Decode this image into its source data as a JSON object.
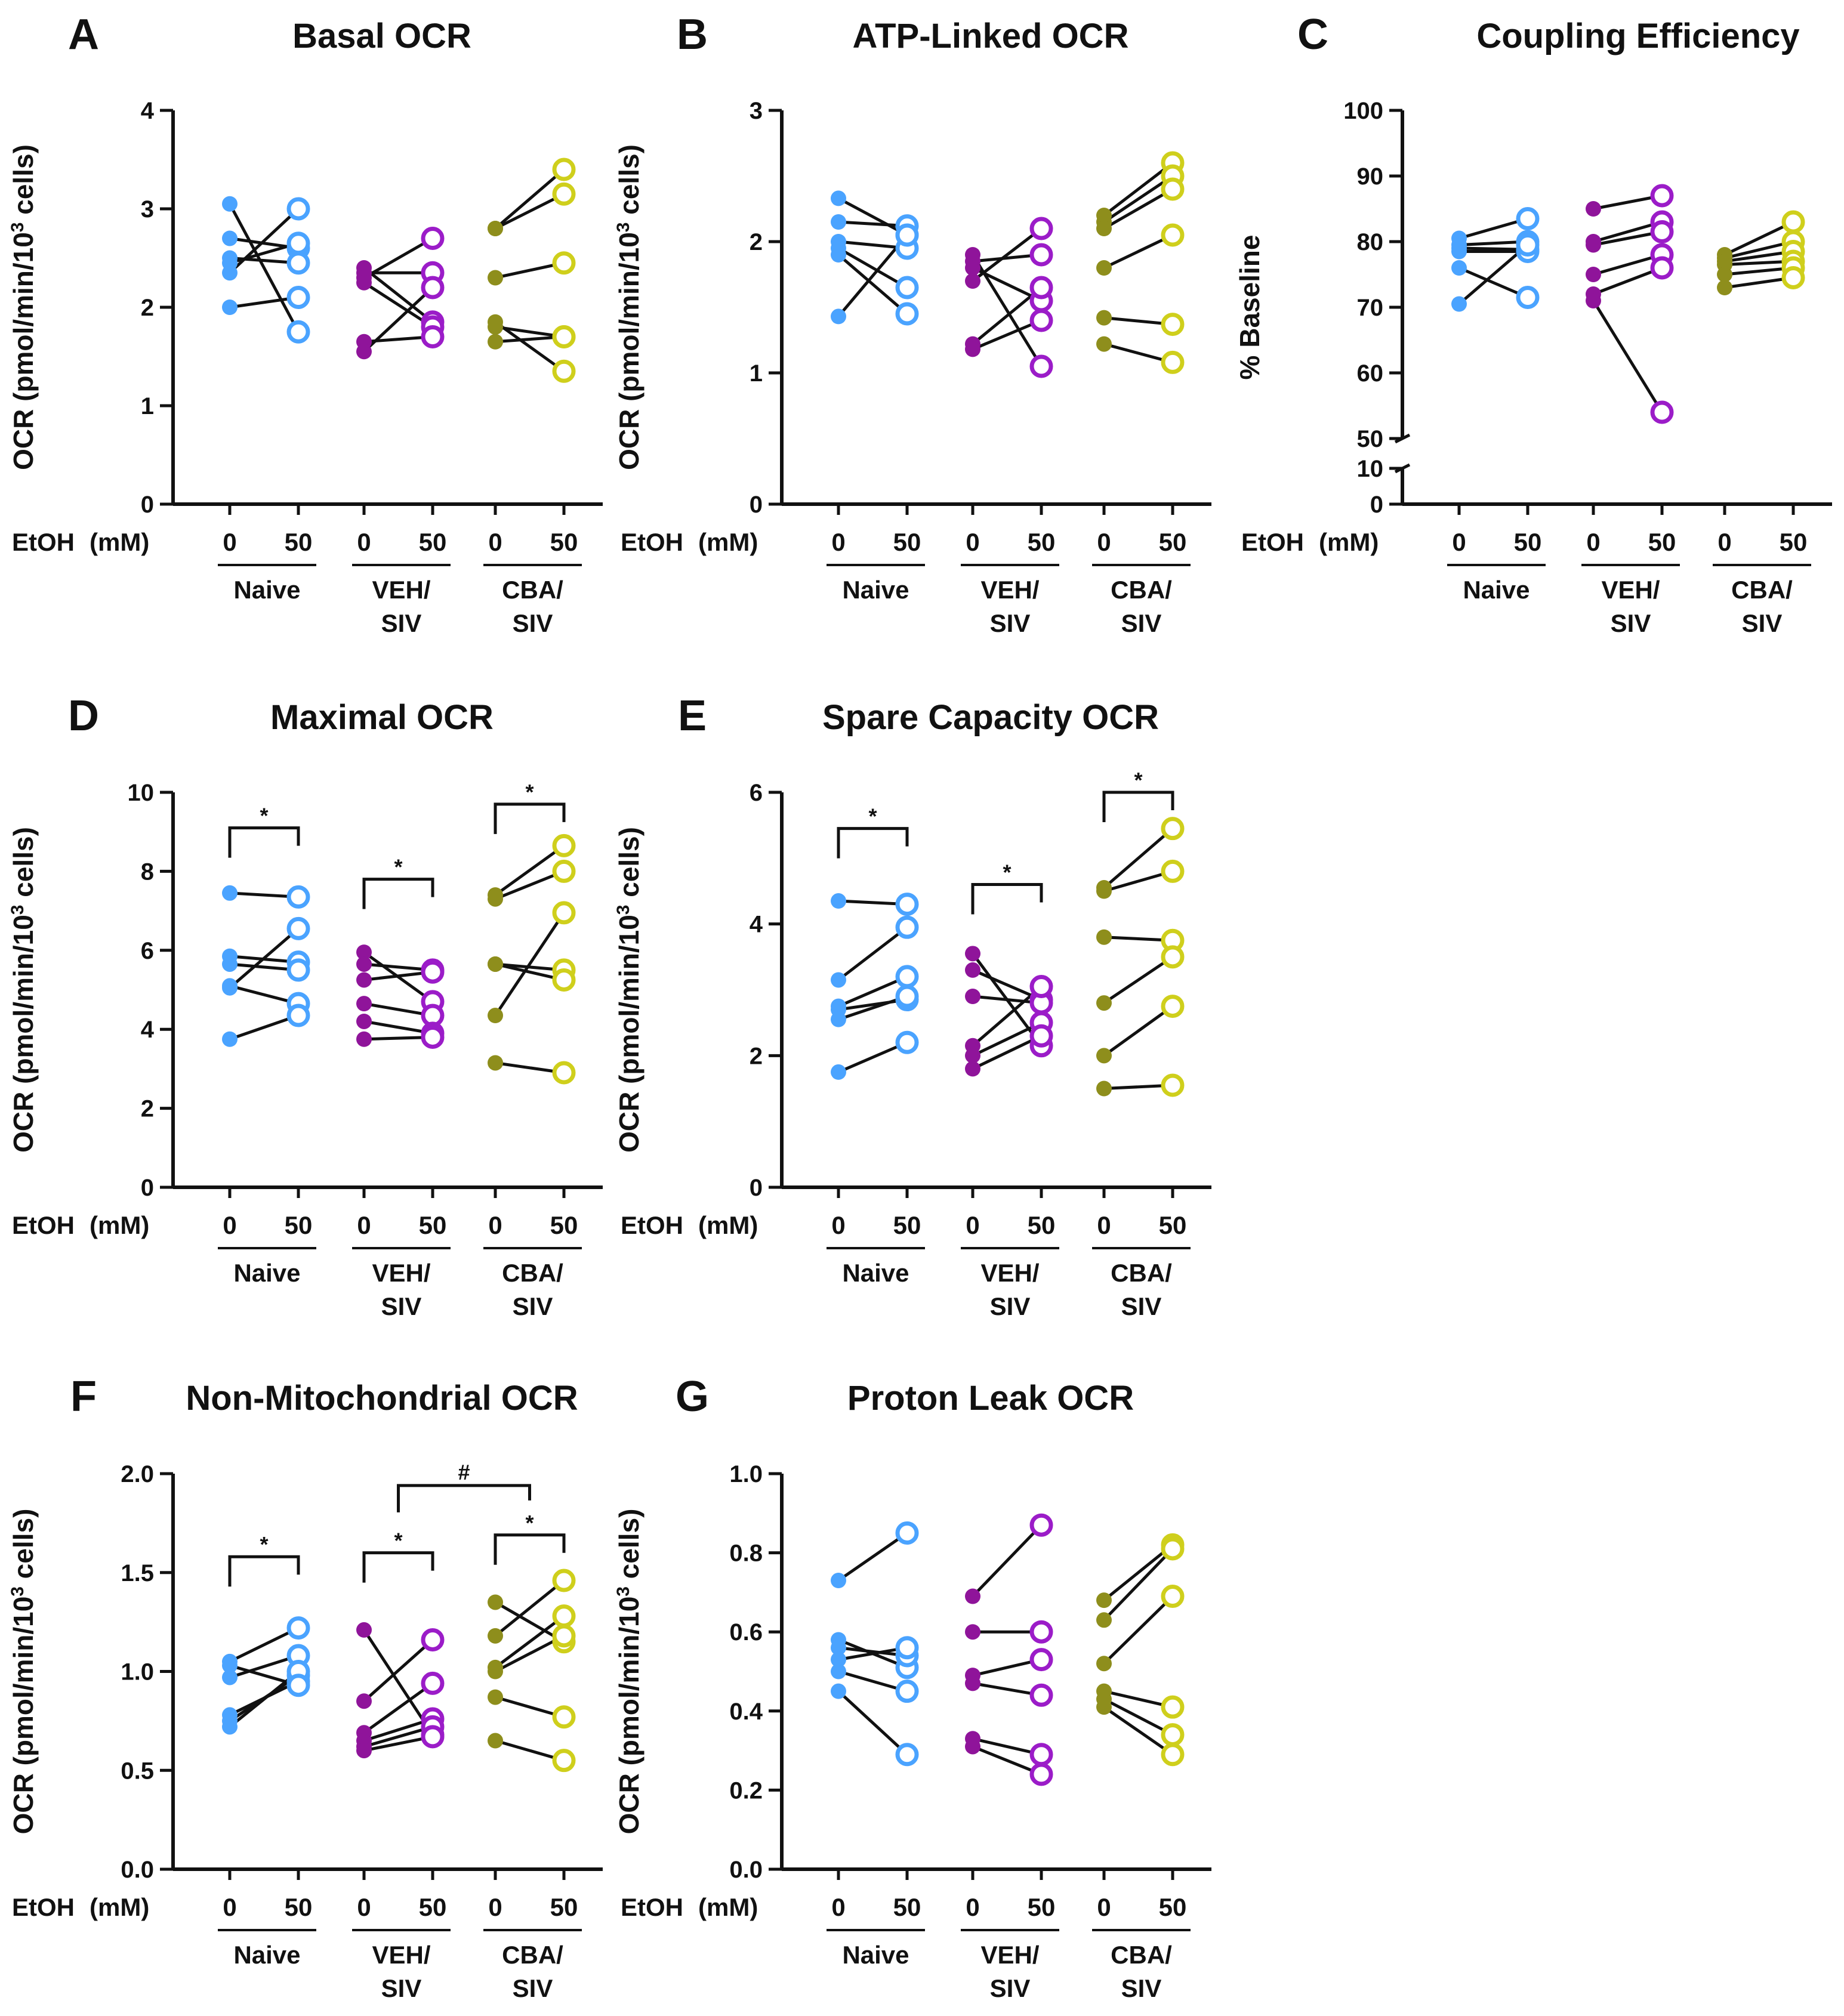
{
  "figure": {
    "etoh_label": "EtOH",
    "mm_label": "(mM)",
    "dose_labels": [
      "0",
      "50"
    ],
    "groups": [
      {
        "line1": "Naive",
        "line2": ""
      },
      {
        "line1": "VEH/",
        "line2": "SIV"
      },
      {
        "line1": "CBA/",
        "line2": "SIV"
      }
    ],
    "colors": {
      "naive": "#4aa3ff",
      "veh": "#8f149a",
      "cba": "#8e8e1c",
      "cba_open": "#cfcf1c",
      "veh_open": "#9b1cc8",
      "naive_open": "#4aa3ff"
    }
  },
  "chart_data": [
    {
      "type": "scatter",
      "panel": "A",
      "title": "Basal OCR",
      "ylabel": "OCR (pmol/min/10³ cells)",
      "ylim": [
        0,
        4
      ],
      "yticks": [
        "0",
        "1",
        "2",
        "3",
        "4"
      ],
      "categories": [
        "Naive 0",
        "Naive 50",
        "VEH/SIV 0",
        "VEH/SIV 50",
        "CBA/SIV 0",
        "CBA/SIV 50"
      ],
      "pairs": [
        [
          [
            3.05,
            1.75
          ],
          [
            2.7,
            2.6
          ],
          [
            2.5,
            2.45
          ],
          [
            2.45,
            2.65
          ],
          [
            2.35,
            3.0
          ],
          [
            2.0,
            2.1
          ]
        ],
        [
          [
            2.4,
            1.85
          ],
          [
            2.35,
            2.35
          ],
          [
            2.3,
            2.7
          ],
          [
            2.25,
            1.8
          ],
          [
            1.65,
            1.7
          ],
          [
            1.55,
            2.2
          ]
        ],
        [
          [
            2.8,
            3.4
          ],
          [
            2.8,
            3.15
          ],
          [
            2.3,
            2.45
          ],
          [
            1.85,
            1.35
          ],
          [
            1.8,
            1.7
          ],
          [
            1.65,
            1.7
          ]
        ]
      ],
      "brackets": [],
      "hash": null
    },
    {
      "type": "scatter",
      "panel": "B",
      "title": "ATP-Linked OCR",
      "ylabel": "OCR (pmol/min/10³ cells)",
      "ylim": [
        0,
        3
      ],
      "yticks": [
        "0",
        "1",
        "2",
        "3"
      ],
      "categories": [
        "Naive 0",
        "Naive 50",
        "VEH/SIV 0",
        "VEH/SIV 50",
        "CBA/SIV 0",
        "CBA/SIV 50"
      ],
      "pairs": [
        [
          [
            2.33,
            2.05
          ],
          [
            2.15,
            2.12
          ],
          [
            2.0,
            1.95
          ],
          [
            1.95,
            1.65
          ],
          [
            1.9,
            1.45
          ],
          [
            1.43,
            2.05
          ]
        ],
        [
          [
            1.9,
            1.05
          ],
          [
            1.85,
            1.9
          ],
          [
            1.8,
            1.55
          ],
          [
            1.7,
            2.1
          ],
          [
            1.22,
            1.65
          ],
          [
            1.18,
            1.4
          ]
        ],
        [
          [
            2.2,
            2.6
          ],
          [
            2.15,
            2.5
          ],
          [
            2.1,
            2.4
          ],
          [
            1.8,
            2.05
          ],
          [
            1.42,
            1.37
          ],
          [
            1.22,
            1.08
          ]
        ]
      ],
      "brackets": [],
      "hash": null
    },
    {
      "type": "scatter",
      "panel": "C",
      "title": "Coupling Efficiency",
      "ylabel": "% Baseline",
      "axis_break": true,
      "ylim": [
        50,
        100
      ],
      "yticks": [
        "50",
        "60",
        "70",
        "80",
        "90",
        "100"
      ],
      "ylim_lower": [
        0,
        10
      ],
      "yticks_lower": [
        "0",
        "10"
      ],
      "categories": [
        "Naive 0",
        "Naive 50",
        "VEH/SIV 0",
        "VEH/SIV 50",
        "CBA/SIV 0",
        "CBA/SIV 50"
      ],
      "pairs": [
        [
          [
            80.5,
            83.5
          ],
          [
            79.5,
            80.0
          ],
          [
            79.0,
            78.8
          ],
          [
            78.5,
            78.5
          ],
          [
            76.0,
            71.5
          ],
          [
            70.5,
            79.5
          ]
        ],
        [
          [
            85.0,
            87.0
          ],
          [
            80.0,
            83.0
          ],
          [
            79.5,
            81.5
          ],
          [
            75.0,
            78.0
          ],
          [
            72.0,
            76.0
          ],
          [
            71.0,
            54.0
          ]
        ],
        [
          [
            78.0,
            83.0
          ],
          [
            77.5,
            80.0
          ],
          [
            77.0,
            78.5
          ],
          [
            76.5,
            77.0
          ],
          [
            75.0,
            76.0
          ],
          [
            73.0,
            74.5
          ]
        ]
      ],
      "brackets": [],
      "hash": null
    },
    {
      "type": "scatter",
      "panel": "D",
      "title": "Maximal OCR",
      "ylabel": "OCR (pmol/min/10³ cells)",
      "ylim": [
        0,
        10
      ],
      "yticks": [
        "0",
        "2",
        "4",
        "6",
        "8",
        "10"
      ],
      "categories": [
        "Naive 0",
        "Naive 50",
        "VEH/SIV 0",
        "VEH/SIV 50",
        "CBA/SIV 0",
        "CBA/SIV 50"
      ],
      "pairs": [
        [
          [
            7.45,
            7.35
          ],
          [
            5.85,
            5.7
          ],
          [
            5.65,
            5.5
          ],
          [
            5.1,
            4.65
          ],
          [
            5.05,
            6.55
          ],
          [
            3.75,
            4.35
          ]
        ],
        [
          [
            5.95,
            4.7
          ],
          [
            5.65,
            5.5
          ],
          [
            5.25,
            5.45
          ],
          [
            4.65,
            4.35
          ],
          [
            4.2,
            3.9
          ],
          [
            3.75,
            3.8
          ]
        ],
        [
          [
            7.4,
            8.65
          ],
          [
            7.3,
            8.0
          ],
          [
            5.65,
            5.5
          ],
          [
            4.35,
            6.95
          ],
          [
            3.15,
            2.9
          ],
          [
            5.65,
            5.25
          ]
        ]
      ],
      "brackets": [
        {
          "group": 0,
          "y": 9.1,
          "label": "*"
        },
        {
          "group": 1,
          "y": 7.8,
          "label": "*"
        },
        {
          "group": 2,
          "y": 9.7,
          "label": "*"
        }
      ],
      "hash": null
    },
    {
      "type": "scatter",
      "panel": "E",
      "title": "Spare Capacity OCR",
      "ylabel": "OCR (pmol/min/10³ cells)",
      "ylim": [
        0,
        6
      ],
      "yticks": [
        "0",
        "2",
        "4",
        "6"
      ],
      "categories": [
        "Naive 0",
        "Naive 50",
        "VEH/SIV 0",
        "VEH/SIV 50",
        "CBA/SIV 0",
        "CBA/SIV 50"
      ],
      "pairs": [
        [
          [
            4.35,
            4.3
          ],
          [
            3.15,
            3.95
          ],
          [
            2.75,
            3.2
          ],
          [
            2.7,
            2.85
          ],
          [
            2.55,
            2.9
          ],
          [
            1.75,
            2.2
          ]
        ],
        [
          [
            3.55,
            2.15
          ],
          [
            3.3,
            2.85
          ],
          [
            2.9,
            2.8
          ],
          [
            2.15,
            3.05
          ],
          [
            2.0,
            2.5
          ],
          [
            1.8,
            2.3
          ]
        ],
        [
          [
            4.5,
            4.8
          ],
          [
            4.55,
            5.45
          ],
          [
            3.8,
            3.75
          ],
          [
            2.8,
            3.5
          ],
          [
            2.0,
            2.75
          ],
          [
            1.5,
            1.55
          ]
        ]
      ],
      "brackets": [
        {
          "group": 0,
          "y": 5.45,
          "label": "*"
        },
        {
          "group": 1,
          "y": 4.6,
          "label": "*"
        },
        {
          "group": 2,
          "y": 6.0,
          "label": "*"
        }
      ],
      "hash": null
    },
    {
      "type": "scatter",
      "panel": "F",
      "title": "Non-Mitochondrial OCR",
      "ylabel": "OCR (pmol/min/10³ cells)",
      "ylim": [
        0,
        2
      ],
      "yticks": [
        "0.0",
        "0.5",
        "1.0",
        "1.5",
        "2.0"
      ],
      "categories": [
        "Naive 0",
        "Naive 50",
        "VEH/SIV 0",
        "VEH/SIV 50",
        "CBA/SIV 0",
        "CBA/SIV 50"
      ],
      "pairs": [
        [
          [
            1.05,
            1.22
          ],
          [
            0.97,
            1.08
          ],
          [
            0.78,
            0.95
          ],
          [
            0.75,
            0.98
          ],
          [
            0.72,
            1.0
          ],
          [
            1.03,
            0.93
          ]
        ],
        [
          [
            1.21,
            0.68
          ],
          [
            0.85,
            1.16
          ],
          [
            0.69,
            0.94
          ],
          [
            0.65,
            0.76
          ],
          [
            0.62,
            0.72
          ],
          [
            0.6,
            0.67
          ]
        ],
        [
          [
            1.35,
            1.15
          ],
          [
            1.18,
            1.46
          ],
          [
            1.02,
            1.28
          ],
          [
            1.0,
            1.18
          ],
          [
            0.87,
            0.77
          ],
          [
            0.65,
            0.55
          ]
        ]
      ],
      "brackets": [
        {
          "group": 0,
          "y": 1.58,
          "label": "*"
        },
        {
          "group": 1,
          "y": 1.6,
          "label": "*"
        },
        {
          "group": 2,
          "y": 1.69,
          "label": "*"
        }
      ],
      "hash": {
        "from_group": 1,
        "to_group": 2,
        "y": 1.94,
        "label": "#"
      }
    },
    {
      "type": "scatter",
      "panel": "G",
      "title": "Proton Leak OCR",
      "ylabel": "OCR (pmol/min/10³ cells)",
      "ylim": [
        0,
        1
      ],
      "yticks": [
        "0.0",
        "0.2",
        "0.4",
        "0.6",
        "0.8",
        "1.0"
      ],
      "categories": [
        "Naive 0",
        "Naive 50",
        "VEH/SIV 0",
        "VEH/SIV 50",
        "CBA/SIV 0",
        "CBA/SIV 50"
      ],
      "pairs": [
        [
          [
            0.73,
            0.85
          ],
          [
            0.58,
            0.51
          ],
          [
            0.56,
            0.54
          ],
          [
            0.53,
            0.56
          ],
          [
            0.5,
            0.45
          ],
          [
            0.45,
            0.29
          ]
        ],
        [
          [
            0.69,
            0.87
          ],
          [
            0.6,
            0.6
          ],
          [
            0.49,
            0.53
          ],
          [
            0.47,
            0.44
          ],
          [
            0.33,
            0.29
          ],
          [
            0.31,
            0.24
          ]
        ],
        [
          [
            0.68,
            0.82
          ],
          [
            0.63,
            0.81
          ],
          [
            0.52,
            0.69
          ],
          [
            0.45,
            0.41
          ],
          [
            0.43,
            0.34
          ],
          [
            0.41,
            0.29
          ]
        ]
      ],
      "brackets": [],
      "hash": null
    }
  ]
}
